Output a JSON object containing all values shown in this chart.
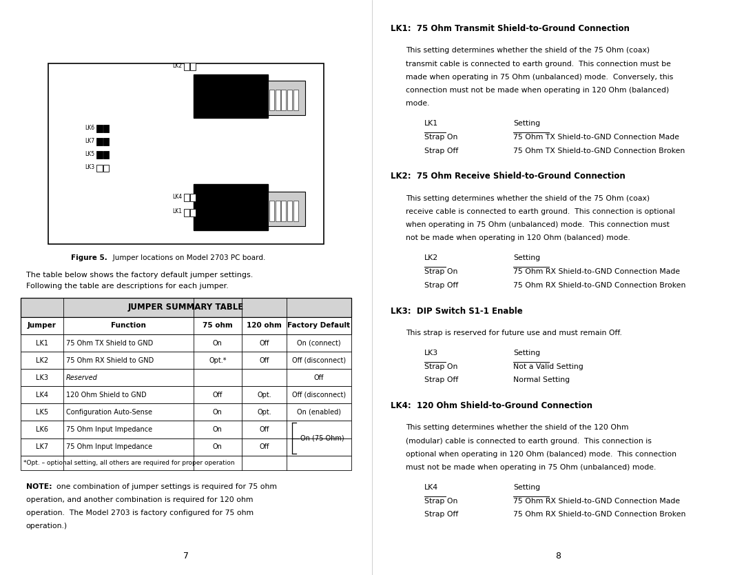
{
  "bg_color": "#ffffff",
  "left_page": {
    "figure_caption_bold": "Figure 5.",
    "figure_caption_rest": "   Jumper locations on Model 2703 PC board.",
    "intro_line1": "The table below shows the factory default jumper settings.",
    "intro_line2": "Following the table are descriptions for each jumper.",
    "table_title": "JUMPER SUMMARY TABLE",
    "table_headers": [
      "Jumper",
      "Function",
      "75 ohm",
      "120 ohm",
      "Factory Default"
    ],
    "table_rows": [
      [
        "LK1",
        "75 Ohm TX Shield to GND",
        "On",
        "Off",
        "On (connect)"
      ],
      [
        "LK2",
        "75 Ohm RX Shield to GND",
        "Opt.*",
        "Off",
        "Off (disconnect)"
      ],
      [
        "LK3",
        "Reserved",
        "",
        "",
        "Off"
      ],
      [
        "LK4",
        "120 Ohm Shield to GND",
        "Off",
        "Opt.",
        "Off (disconnect)"
      ],
      [
        "LK5",
        "Configuration Auto-Sense",
        "On",
        "Opt.",
        "On (enabled)"
      ],
      [
        "LK6",
        "75 Ohm Input Impedance",
        "On",
        "Off",
        ""
      ],
      [
        "LK7",
        "75 Ohm Input Impedance",
        "On",
        "Off",
        ""
      ]
    ],
    "brace_label": "On (75 Ohm)",
    "table_footnote": "*Opt. – optional setting, all others are required for proper operation",
    "note_lines": [
      "NOTE: one combination of jumper settings is required for 75 ohm",
      "operation, and another combination is required for 120 ohm",
      "operation.  The Model 2703 is factory configured for 75 ohm",
      "operation.)"
    ],
    "page_number": "7"
  },
  "right_page": {
    "sections": [
      {
        "heading": "LK1:  75 Ohm Transmit Shield-to-Ground Connection",
        "body_lines": [
          "This setting determines whether the shield of the 75 Ohm (coax)",
          "transmit cable is connected to earth ground.  This connection must be",
          "made when operating in 75 Ohm (unbalanced) mode.  Conversely, this",
          "connection must not be made when operating in 120 Ohm (balanced)",
          "mode."
        ],
        "table_label": "LK1",
        "table_col2": "Setting",
        "table_rows": [
          [
            "Strap On",
            "75 Ohm TX Shield-to-GND Connection Made"
          ],
          [
            "Strap Off",
            "75 Ohm TX Shield-to-GND Connection Broken"
          ]
        ]
      },
      {
        "heading": "LK2:  75 Ohm Receive Shield-to-Ground Connection",
        "body_lines": [
          "This setting determines whether the shield of the 75 Ohm (coax)",
          "receive cable is connected to earth ground.  This connection is optional",
          "when operating in 75 Ohm (unbalanced) mode.  This connection must",
          "not be made when operating in 120 Ohm (balanced) mode."
        ],
        "table_label": "LK2",
        "table_col2": "Setting",
        "table_rows": [
          [
            "Strap On",
            "75 Ohm RX Shield-to-GND Connection Made"
          ],
          [
            "Strap Off",
            "75 Ohm RX Shield-to-GND Connection Broken"
          ]
        ]
      },
      {
        "heading": "LK3:  DIP Switch S1-1 Enable",
        "body_lines": [
          "This strap is reserved for future use and must remain Off."
        ],
        "table_label": "LK3",
        "table_col2": "Setting",
        "table_rows": [
          [
            "Strap On",
            "Not a Valid Setting"
          ],
          [
            "Strap Off",
            "Normal Setting"
          ]
        ]
      },
      {
        "heading": "LK4:  120 Ohm Shield-to-Ground Connection",
        "body_lines": [
          "This setting determines whether the shield of the 120 Ohm",
          "(modular) cable is connected to earth ground.  This connection is",
          "optional when operating in 120 Ohm (balanced) mode.  This connection",
          "must not be made when operating in 75 Ohm (unbalanced) mode."
        ],
        "table_label": "LK4",
        "table_col2": "Setting",
        "table_rows": [
          [
            "Strap On",
            "75 Ohm RX Shield-to-GND Connection Made"
          ],
          [
            "Strap Off",
            "75 Ohm RX Shield-to-GND Connection Broken"
          ]
        ]
      }
    ],
    "page_number": "8"
  }
}
